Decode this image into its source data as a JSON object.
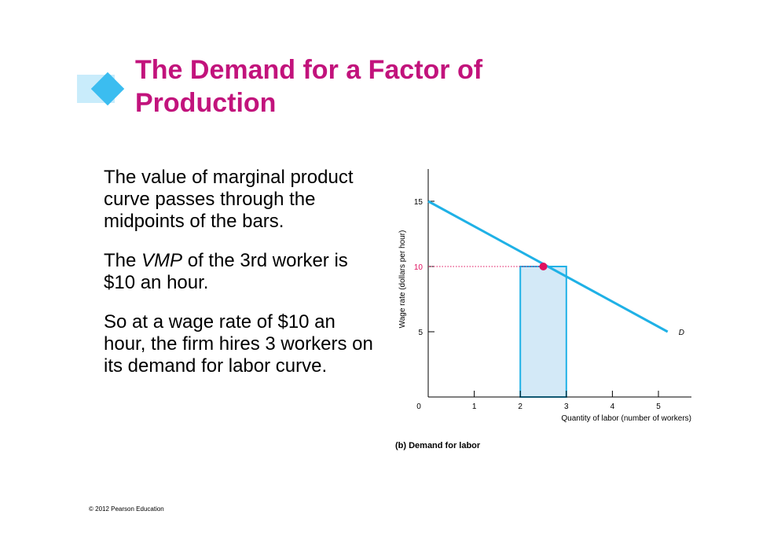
{
  "slide": {
    "title": "The Demand for a Factor of Production",
    "paragraphs": [
      {
        "before": "The value of marginal product curve passes through the midpoints of the bars.",
        "em": "",
        "after": ""
      },
      {
        "before": "The ",
        "em": "VMP",
        "after": " of the 3rd worker is $10 an hour."
      },
      {
        "before": "So at a wage rate of $10 an hour, the firm hires 3 workers on its demand for labor curve.",
        "em": "",
        "after": ""
      }
    ],
    "footer": "© 2012 Pearson Education"
  },
  "colors": {
    "title": "#c2137c",
    "accent": "#3bbdf0",
    "accent_light": "#c9ecfb",
    "curve": "#1fb1e6",
    "bar_fill": "#d3e9f7",
    "point": "#e0115f"
  },
  "chart_data": {
    "type": "line",
    "caption": "(b) Demand for labor",
    "xlabel": "Quantity of labor (number of workers)",
    "ylabel": "Wage rate (dollars per hour)",
    "xlim": [
      0,
      5.7
    ],
    "ylim": [
      0,
      17
    ],
    "x_ticks": [
      "0",
      "1",
      "2",
      "3",
      "4",
      "5"
    ],
    "y_ticks": [
      "5",
      "10",
      "15"
    ],
    "series": [
      {
        "name": "D",
        "x": [
          0,
          5.2
        ],
        "y": [
          15,
          5
        ]
      }
    ],
    "bar": {
      "x0": 2,
      "x1": 3,
      "value": 10
    },
    "point": {
      "x": 2.5,
      "y": 10
    },
    "reference_value": 10
  }
}
